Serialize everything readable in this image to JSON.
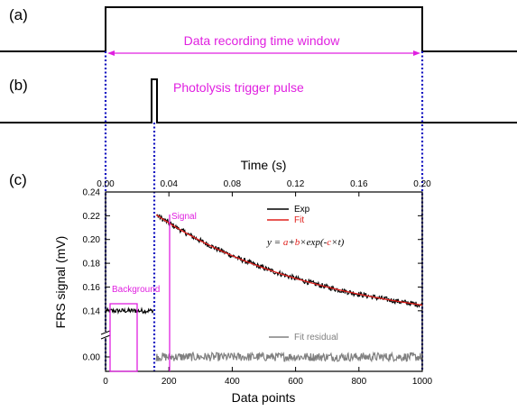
{
  "panels": {
    "a": {
      "label": "(a)",
      "annotation": "Data recording time window"
    },
    "b": {
      "label": "(b)",
      "annotation": "Photolysis trigger pulse"
    },
    "c": {
      "label": "(c)"
    }
  },
  "colors": {
    "exp": "#000000",
    "fit": "#e0201c",
    "residual": "#808080",
    "magenta": "#e020e0",
    "guide": "#1010c0"
  },
  "chart_data": {
    "type": "line",
    "xlabel": "Data points",
    "ylabel": "FRS signal (mV)",
    "xlim": [
      0,
      1000
    ],
    "x_ticks": [
      0,
      200,
      400,
      600,
      800,
      1000
    ],
    "top_axis": {
      "label": "Time (s)",
      "xlim": [
        0.0,
        0.2
      ],
      "ticks": [
        "0.00",
        "0.04",
        "0.08",
        "0.12",
        "0.16",
        "0.20"
      ]
    },
    "y_axis_broken": true,
    "y_upper": {
      "ylim": [
        0.13,
        0.24
      ],
      "ticks": [
        "0.14",
        "0.16",
        "0.18",
        "0.20",
        "0.22",
        "0.24"
      ]
    },
    "y_lower": {
      "ylim": [
        -0.015,
        0.015
      ],
      "ticks": [
        "0.00"
      ]
    },
    "series": [
      {
        "name": "Exp",
        "segments": [
          {
            "x": [
              0,
              150
            ],
            "level": 0.14,
            "note_points": [
              [
                0,
                0.14
              ],
              [
                30,
                0.141
              ],
              [
                60,
                0.139
              ],
              [
                90,
                0.14
              ],
              [
                120,
                0.141
              ],
              [
                150,
                0.14
              ]
            ]
          },
          {
            "x": [
              160,
              1000
            ],
            "points": [
              [
                160,
                0.225
              ],
              [
                200,
                0.212
              ],
              [
                300,
                0.196
              ],
              [
                400,
                0.182
              ],
              [
                500,
                0.171
              ],
              [
                600,
                0.163
              ],
              [
                700,
                0.155
              ],
              [
                800,
                0.149
              ],
              [
                900,
                0.144
              ],
              [
                1000,
                0.14
              ]
            ]
          }
        ]
      },
      {
        "name": "Fit",
        "model": {
          "a": 0.124,
          "b": 0.108,
          "c": 0.00183
        },
        "x": [
          160,
          1000
        ]
      },
      {
        "name": "Fit residual",
        "x": [
          160,
          1000
        ],
        "level": 0.0
      }
    ],
    "legend": {
      "placement": "top-right",
      "entries": [
        "Exp",
        "Fit"
      ]
    },
    "equation": {
      "prefix": "y = ",
      "a": "a",
      "plus": "+",
      "b": "b",
      "times": "×exp(-",
      "c": "c",
      "suffix": "×t)"
    },
    "annotations": {
      "background": "Background",
      "signal": "Signal",
      "residual": "Fit residual"
    }
  }
}
